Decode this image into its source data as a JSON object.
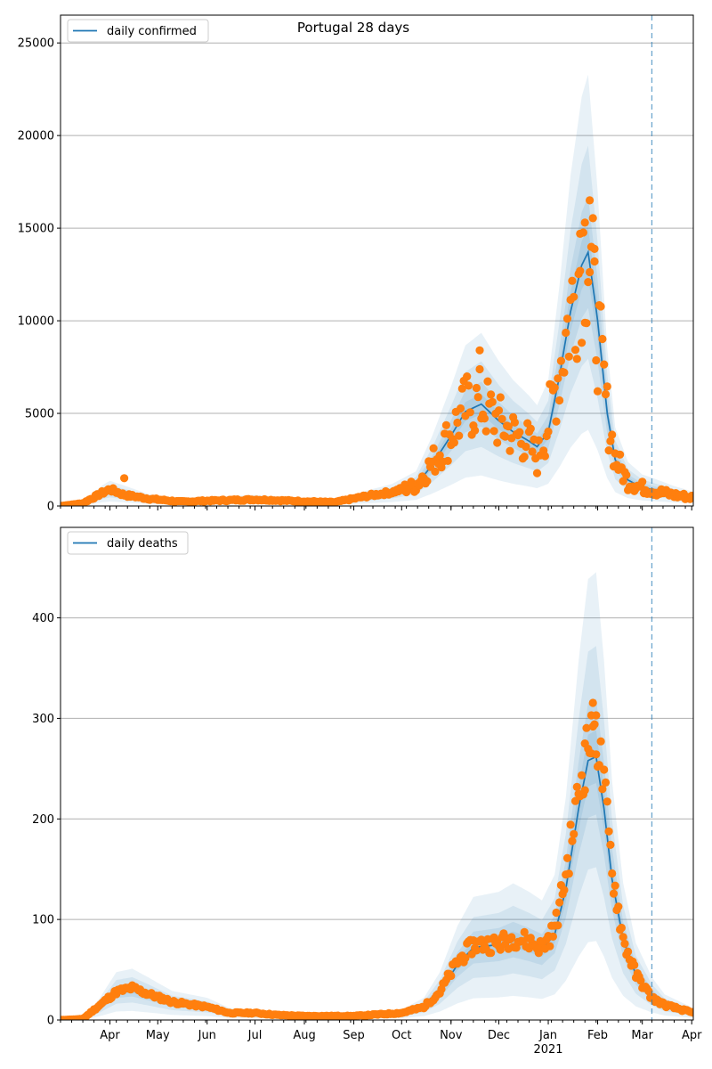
{
  "figure_title": "Portugal 28 days",
  "colors": {
    "line": "#1f77b4",
    "points": "#ff7f0e",
    "band": "#1f77b4",
    "grid": "#b0b0b0",
    "marker_line": "#1f77b4"
  },
  "chart_data": [
    {
      "type": "line",
      "title": "Portugal 28 days",
      "legend": {
        "label": "daily confirmed",
        "placement": "top-left"
      },
      "ylim": [
        0,
        26500
      ],
      "yticks": [
        0,
        5000,
        10000,
        15000,
        20000,
        25000
      ],
      "ytick_labels": [
        "0",
        "5000",
        "10000",
        "15000",
        "20000",
        "25000"
      ],
      "grid": "y",
      "xlim": [
        "2020-03-01",
        "2021-04-02"
      ],
      "forecast_start": "2021-03-07",
      "x_labels_shown": false,
      "line_anchors": [
        [
          "2020-03-01",
          0
        ],
        [
          "2020-03-15",
          100
        ],
        [
          "2020-03-27",
          650
        ],
        [
          "2020-04-01",
          800
        ],
        [
          "2020-04-10",
          650
        ],
        [
          "2020-04-25",
          380
        ],
        [
          "2020-05-15",
          230
        ],
        [
          "2020-06-01",
          280
        ],
        [
          "2020-07-01",
          350
        ],
        [
          "2020-08-01",
          250
        ],
        [
          "2020-08-20",
          200
        ],
        [
          "2020-09-10",
          500
        ],
        [
          "2020-09-25",
          700
        ],
        [
          "2020-10-10",
          1100
        ],
        [
          "2020-10-20",
          2200
        ],
        [
          "2020-11-01",
          3800
        ],
        [
          "2020-11-10",
          5100
        ],
        [
          "2020-11-20",
          5500
        ],
        [
          "2020-12-01",
          4600
        ],
        [
          "2020-12-10",
          4000
        ],
        [
          "2020-12-20",
          3500
        ],
        [
          "2020-12-25",
          3200
        ],
        [
          "2021-01-01",
          4000
        ],
        [
          "2021-01-08",
          7000
        ],
        [
          "2021-01-15",
          10500
        ],
        [
          "2021-01-22",
          13000
        ],
        [
          "2021-01-26",
          13700
        ],
        [
          "2021-02-01",
          10000
        ],
        [
          "2021-02-07",
          5000
        ],
        [
          "2021-02-12",
          2500
        ],
        [
          "2021-02-20",
          1400
        ],
        [
          "2021-03-01",
          1000
        ],
        [
          "2021-03-07",
          900
        ],
        [
          "2021-03-20",
          650
        ],
        [
          "2021-04-02",
          450
        ]
      ],
      "band_widths": [
        0.1,
        0.22,
        0.42,
        0.7
      ],
      "observed_anchors": [
        [
          "2020-03-01",
          0
        ],
        [
          "2020-03-15",
          150
        ],
        [
          "2020-03-27",
          700
        ],
        [
          "2020-04-01",
          900
        ],
        [
          "2020-04-10",
          600
        ],
        [
          "2020-04-25",
          400
        ],
        [
          "2020-05-15",
          230
        ],
        [
          "2020-06-01",
          280
        ],
        [
          "2020-07-01",
          350
        ],
        [
          "2020-08-01",
          250
        ],
        [
          "2020-08-20",
          200
        ],
        [
          "2020-09-10",
          550
        ],
        [
          "2020-09-25",
          750
        ],
        [
          "2020-10-10",
          1100
        ],
        [
          "2020-10-20",
          2300
        ],
        [
          "2020-11-01",
          3900
        ],
        [
          "2020-11-10",
          5300
        ],
        [
          "2020-11-20",
          5600
        ],
        [
          "2020-12-01",
          4500
        ],
        [
          "2020-12-10",
          3900
        ],
        [
          "2020-12-20",
          3400
        ],
        [
          "2020-12-25",
          2500
        ],
        [
          "2021-01-01",
          4500
        ],
        [
          "2021-01-08",
          7500
        ],
        [
          "2021-01-15",
          10500
        ],
        [
          "2021-01-22",
          13500
        ],
        [
          "2021-01-26",
          14000
        ],
        [
          "2021-02-01",
          9500
        ],
        [
          "2021-02-07",
          5000
        ],
        [
          "2021-02-12",
          2600
        ],
        [
          "2021-02-20",
          1300
        ],
        [
          "2021-03-01",
          1000
        ],
        [
          "2021-03-07",
          850
        ],
        [
          "2021-03-20",
          600
        ],
        [
          "2021-04-02",
          450
        ]
      ],
      "scatter_end": "2021-04-02",
      "noise": 0.15,
      "noise_start": "2020-10-01",
      "high_noise": 0.35,
      "seed": 7,
      "highlights": [
        [
          "2020-04-10",
          1500
        ],
        [
          "2020-11-19",
          8400
        ],
        [
          "2021-01-27",
          16500
        ],
        [
          "2021-01-24",
          15300
        ],
        [
          "2021-01-21",
          14700
        ],
        [
          "2021-01-30",
          13200
        ]
      ]
    },
    {
      "type": "line",
      "title": "",
      "legend": {
        "label": "daily deaths",
        "placement": "top-left"
      },
      "ylim": [
        0,
        490
      ],
      "yticks": [
        0,
        100,
        200,
        300,
        400
      ],
      "ytick_labels": [
        "0",
        "100",
        "200",
        "300",
        "400"
      ],
      "grid": "y",
      "xlim": [
        "2020-03-01",
        "2021-04-02"
      ],
      "forecast_start": "2021-03-07",
      "x_labels_shown": true,
      "x_ticks": [
        {
          "date": "2020-04-01",
          "label": "Apr"
        },
        {
          "date": "2020-05-01",
          "label": "May"
        },
        {
          "date": "2020-06-01",
          "label": "Jun"
        },
        {
          "date": "2020-07-01",
          "label": "Jul"
        },
        {
          "date": "2020-08-01",
          "label": "Aug"
        },
        {
          "date": "2020-09-01",
          "label": "Sep"
        },
        {
          "date": "2020-10-01",
          "label": "Oct"
        },
        {
          "date": "2020-11-01",
          "label": "Nov"
        },
        {
          "date": "2020-12-01",
          "label": "Dec"
        },
        {
          "date": "2021-01-01",
          "label": "Jan",
          "sublabel": "2021"
        },
        {
          "date": "2021-02-01",
          "label": "Feb"
        },
        {
          "date": "2021-03-01",
          "label": "Mar"
        },
        {
          "date": "2021-04-01",
          "label": "Apr"
        }
      ],
      "line_anchors": [
        [
          "2020-03-01",
          0
        ],
        [
          "2020-03-15",
          1
        ],
        [
          "2020-03-25",
          12
        ],
        [
          "2020-04-05",
          28
        ],
        [
          "2020-04-15",
          30
        ],
        [
          "2020-04-25",
          25
        ],
        [
          "2020-05-10",
          17
        ],
        [
          "2020-06-01",
          13
        ],
        [
          "2020-06-15",
          7
        ],
        [
          "2020-07-01",
          6
        ],
        [
          "2020-07-15",
          5
        ],
        [
          "2020-08-01",
          4
        ],
        [
          "2020-09-01",
          4
        ],
        [
          "2020-10-01",
          6
        ],
        [
          "2020-10-15",
          13
        ],
        [
          "2020-10-25",
          28
        ],
        [
          "2020-11-05",
          55
        ],
        [
          "2020-11-15",
          72
        ],
        [
          "2020-12-01",
          75
        ],
        [
          "2020-12-10",
          80
        ],
        [
          "2020-12-20",
          75
        ],
        [
          "2020-12-28",
          70
        ],
        [
          "2021-01-05",
          85
        ],
        [
          "2021-01-12",
          130
        ],
        [
          "2021-01-20",
          210
        ],
        [
          "2021-01-26",
          258
        ],
        [
          "2021-01-31",
          262
        ],
        [
          "2021-02-05",
          210
        ],
        [
          "2021-02-10",
          140
        ],
        [
          "2021-02-17",
          80
        ],
        [
          "2021-02-25",
          45
        ],
        [
          "2021-03-07",
          25
        ],
        [
          "2021-03-15",
          15
        ],
        [
          "2021-04-02",
          7
        ]
      ],
      "band_widths": [
        0.1,
        0.22,
        0.42,
        0.7
      ],
      "observed_anchors": [
        [
          "2020-03-01",
          0
        ],
        [
          "2020-03-15",
          1
        ],
        [
          "2020-03-25",
          14
        ],
        [
          "2020-04-05",
          28
        ],
        [
          "2020-04-15",
          32
        ],
        [
          "2020-04-25",
          26
        ],
        [
          "2020-05-10",
          18
        ],
        [
          "2020-06-01",
          13
        ],
        [
          "2020-06-15",
          7
        ],
        [
          "2020-07-01",
          7
        ],
        [
          "2020-07-15",
          5
        ],
        [
          "2020-08-01",
          4
        ],
        [
          "2020-09-01",
          4
        ],
        [
          "2020-10-01",
          7
        ],
        [
          "2020-10-15",
          13
        ],
        [
          "2020-10-25",
          28
        ],
        [
          "2020-11-05",
          58
        ],
        [
          "2020-11-15",
          75
        ],
        [
          "2020-12-01",
          76
        ],
        [
          "2020-12-10",
          82
        ],
        [
          "2020-12-20",
          78
        ],
        [
          "2020-12-28",
          72
        ],
        [
          "2021-01-05",
          90
        ],
        [
          "2021-01-12",
          145
        ],
        [
          "2021-01-20",
          225
        ],
        [
          "2021-01-26",
          275
        ],
        [
          "2021-01-31",
          290
        ],
        [
          "2021-02-05",
          230
        ],
        [
          "2021-02-10",
          150
        ],
        [
          "2021-02-17",
          80
        ],
        [
          "2021-02-25",
          45
        ],
        [
          "2021-03-07",
          22
        ],
        [
          "2021-03-15",
          15
        ],
        [
          "2021-04-02",
          7
        ]
      ],
      "scatter_end": "2021-04-02",
      "noise": 0.1,
      "noise_start": "2020-10-15",
      "high_noise": 0.12,
      "seed": 11,
      "highlights": [
        [
          "2021-01-28",
          303
        ],
        [
          "2021-01-31",
          303
        ],
        [
          "2021-01-29",
          292
        ],
        [
          "2021-01-24",
          275
        ]
      ]
    }
  ]
}
